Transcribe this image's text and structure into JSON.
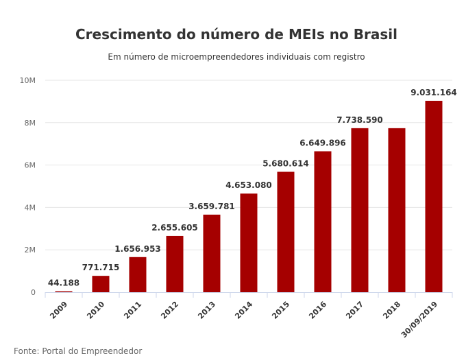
{
  "chart_data": {
    "type": "bar",
    "title": "Crescimento do número de MEIs no Brasil",
    "subtitle": "Em número de microempreendedores individuais com registro",
    "categories": [
      "2009",
      "2010",
      "2011",
      "2012",
      "2013",
      "2014",
      "2015",
      "2016",
      "2017",
      "2018",
      "30/09/2019"
    ],
    "values": [
      44188,
      771715,
      1656953,
      2655605,
      3659781,
      4653080,
      5680614,
      6649896,
      7738590,
      7738590,
      9031164
    ],
    "value_labels": [
      "44.188",
      "771.715",
      "1.656.953",
      "2.655.605",
      "3.659.781",
      "4.653.080",
      "5.680.614",
      "6.649.896",
      "7.738.590",
      "",
      "9.031.164"
    ],
    "ylim": [
      0,
      10000000
    ],
    "y_ticks": [
      0,
      2000000,
      4000000,
      6000000,
      8000000,
      10000000
    ],
    "y_tick_labels": [
      "0",
      "2M",
      "4M",
      "6M",
      "8M",
      "10M"
    ],
    "xlabel": "",
    "ylabel": "",
    "grid": true,
    "legend": "none",
    "bar_color": "#a50000",
    "source": "Fonte: Portal do Empreendedor"
  }
}
